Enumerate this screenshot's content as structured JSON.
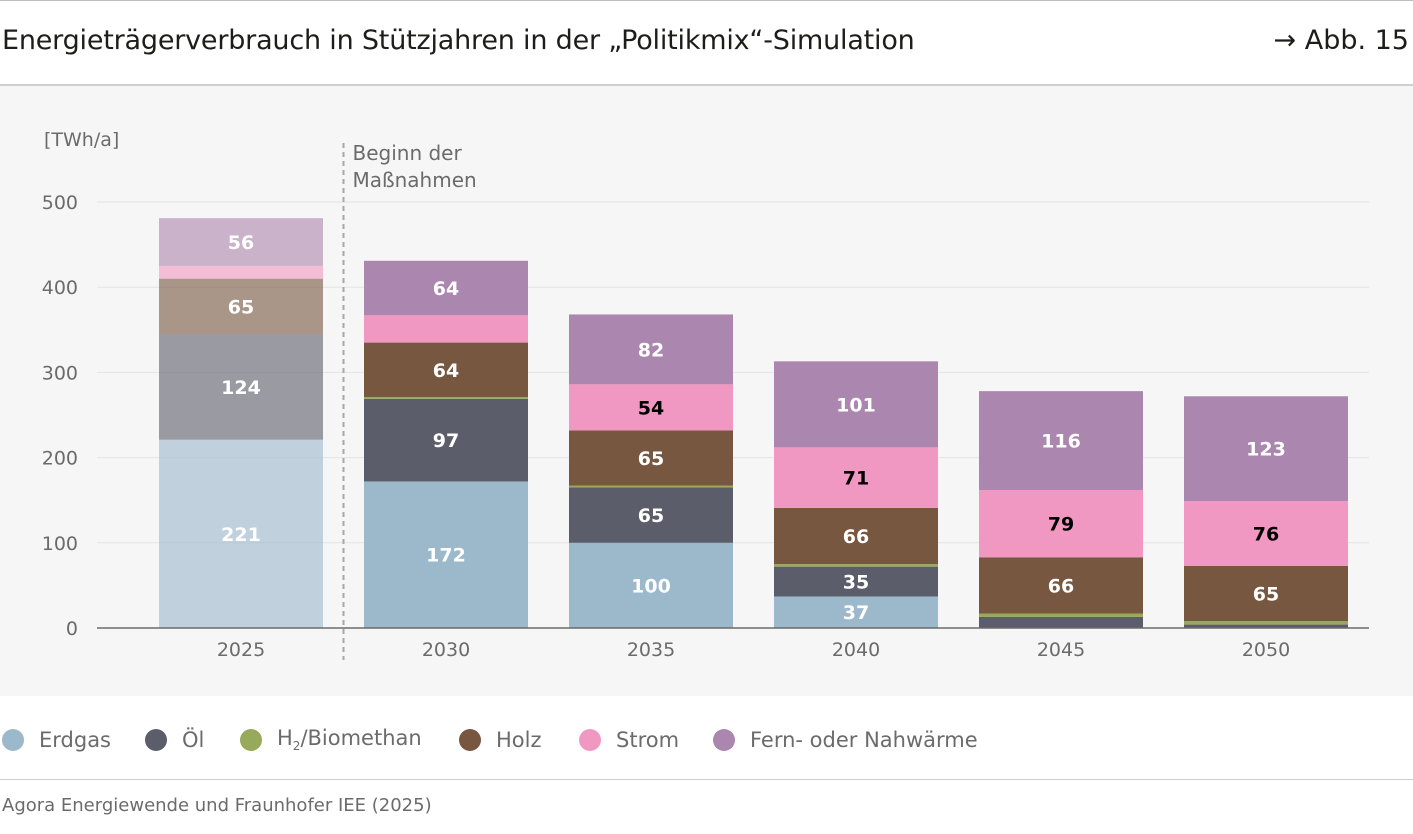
{
  "header": {
    "title": "Energieträgerverbrauch in Stützjahren in der „Politikmix“-Simulation",
    "figure_ref": "→ Abb. 15"
  },
  "footer": {
    "source": "Agora Energiewende und Fraunhofer IEE (2025)"
  },
  "chart_data": {
    "type": "bar",
    "stacked": true,
    "title": "Energieträgerverbrauch in Stützjahren in der „Politikmix“-Simulation",
    "ylabel": "[TWh/a]",
    "xlabel": "",
    "ylim": [
      0,
      500
    ],
    "yticks": [
      0,
      100,
      200,
      300,
      400,
      500
    ],
    "grid": true,
    "legend_position": "bottom",
    "categories": [
      "2025",
      "2030",
      "2035",
      "2040",
      "2045",
      "2050"
    ],
    "annotation": {
      "text_line1": "Beginn der",
      "text_line2": "Maßnahmen",
      "between": [
        "2025",
        "2030"
      ]
    },
    "faded_categories": [
      "2025"
    ],
    "series": [
      {
        "name": "Erdgas",
        "color": "#9cb8cb",
        "label_color": "#ffffff",
        "values": [
          221,
          172,
          100,
          37,
          0,
          0
        ],
        "labels": [
          "221",
          "172",
          "100",
          "37",
          "",
          ""
        ]
      },
      {
        "name": "Öl",
        "color": "#5b5d6b",
        "label_color": "#ffffff",
        "values": [
          124,
          97,
          65,
          35,
          13,
          4
        ],
        "labels": [
          "124",
          "97",
          "65",
          "35",
          "",
          ""
        ]
      },
      {
        "name": "H2/Biomethan",
        "color": "#97a95a",
        "label_color": "#ffffff",
        "values": [
          0,
          2,
          2,
          3,
          4,
          4
        ],
        "labels": [
          "",
          "",
          "",
          "",
          "",
          ""
        ]
      },
      {
        "name": "Holz",
        "color": "#775740",
        "label_color": "#ffffff",
        "values": [
          65,
          64,
          65,
          66,
          66,
          65
        ],
        "labels": [
          "65",
          "64",
          "65",
          "66",
          "66",
          "65"
        ]
      },
      {
        "name": "Strom",
        "color": "#f198c2",
        "label_color": "#000000",
        "values": [
          15,
          32,
          54,
          71,
          79,
          76
        ],
        "labels": [
          "",
          "",
          "54",
          "71",
          "79",
          "76"
        ]
      },
      {
        "name": "Fern- oder Nahwärme",
        "color": "#ab86ae",
        "label_color": "#ffffff",
        "values": [
          56,
          64,
          82,
          101,
          116,
          123
        ],
        "labels": [
          "56",
          "64",
          "82",
          "101",
          "116",
          "123"
        ]
      }
    ]
  },
  "legend": {
    "items": [
      {
        "key": "erdgas",
        "label": "Erdgas",
        "color": "#9cb8cb"
      },
      {
        "key": "oel",
        "label": "Öl",
        "color": "#5b5d6b"
      },
      {
        "key": "h2",
        "label_main": "H",
        "label_sub": "2",
        "label_rest": "/Biomethan",
        "color": "#97a95a"
      },
      {
        "key": "holz",
        "label": "Holz",
        "color": "#775740"
      },
      {
        "key": "strom",
        "label": "Strom",
        "color": "#f198c2"
      },
      {
        "key": "fern",
        "label": "Fern- oder Nahwärme",
        "color": "#ab86ae"
      }
    ]
  }
}
